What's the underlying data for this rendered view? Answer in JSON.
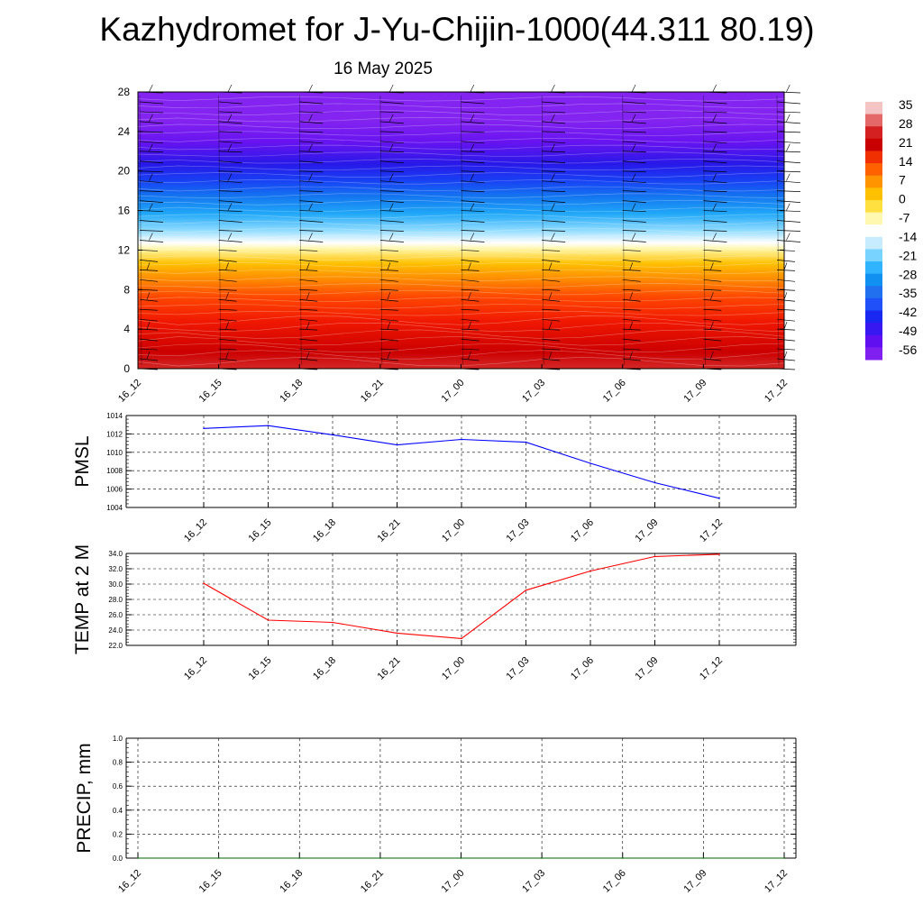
{
  "title": "Kazhydromet for J-Yu-Chijin-1000(44.311 80.19)",
  "subtitle": "16 May 2025",
  "colorbar": {
    "labels": [
      "35",
      "28",
      "21",
      "14",
      "7",
      "0",
      "-7",
      "-14",
      "-21",
      "-28",
      "-35",
      "-42",
      "-49",
      "-56"
    ],
    "colors": [
      "#f4c4c4",
      "#e46868",
      "#d42020",
      "#c80000",
      "#f03000",
      "#ff6000",
      "#ff9400",
      "#ffc000",
      "#ffe040",
      "#fff8b0",
      "#ffffff",
      "#c8ecff",
      "#78d4ff",
      "#30b4ff",
      "#1090f0",
      "#2070f0",
      "#2050f8",
      "#1828f0",
      "#3818f0",
      "#6010f0",
      "#8020f0"
    ]
  },
  "chart_data": [
    {
      "type": "heatmap",
      "name": "",
      "xlabels": [
        "16_12",
        "16_15",
        "16_18",
        "16_21",
        "17_00",
        "17_03",
        "17_06",
        "17_09",
        "17_12"
      ],
      "yticks": [
        0,
        4,
        8,
        12,
        16,
        20,
        24,
        28
      ],
      "ylim": [
        0,
        28
      ],
      "color_scale": [
        35,
        -56
      ],
      "grid": false,
      "overlay": "wind barbs"
    },
    {
      "type": "line",
      "ylabel": "PMSL",
      "xlabels": [
        "16_12",
        "16_15",
        "16_18",
        "16_21",
        "17_00",
        "17_03",
        "17_06",
        "17_09",
        "17_12"
      ],
      "yticks": [
        "1014",
        "1012",
        "1010",
        "1008",
        "1006",
        "1004"
      ],
      "ylim": [
        1004,
        1014
      ],
      "values": [
        1012.6,
        1012.9,
        1011.9,
        1010.8,
        1011.4,
        1011.1,
        1008.8,
        1006.7,
        1005.0
      ],
      "color": "#0000ff",
      "grid": true
    },
    {
      "type": "line",
      "ylabel": "TEMP at 2 M",
      "xlabels": [
        "16_12",
        "16_15",
        "16_18",
        "16_21",
        "17_00",
        "17_03",
        "17_06",
        "17_09",
        "17_12"
      ],
      "yticks": [
        "34.0",
        "32.0",
        "30.0",
        "28.0",
        "26.0",
        "24.0",
        "22.0"
      ],
      "ylim": [
        22,
        34
      ],
      "values": [
        30.1,
        25.3,
        25.0,
        23.6,
        22.9,
        29.2,
        31.7,
        33.6,
        33.9
      ],
      "color": "#ff0000",
      "grid": true
    },
    {
      "type": "line",
      "ylabel": "PRECIP, mm",
      "xlabels": [
        "16_12",
        "16_15",
        "16_18",
        "16_21",
        "17_00",
        "17_03",
        "17_06",
        "17_09",
        "17_12"
      ],
      "yticks": [
        "1.0",
        "0.8",
        "0.6",
        "0.4",
        "0.2",
        "0.0"
      ],
      "ylim": [
        0,
        1
      ],
      "values": [
        0,
        0,
        0,
        0,
        0,
        0,
        0,
        0,
        0
      ],
      "color": "#006400",
      "grid": true
    }
  ]
}
